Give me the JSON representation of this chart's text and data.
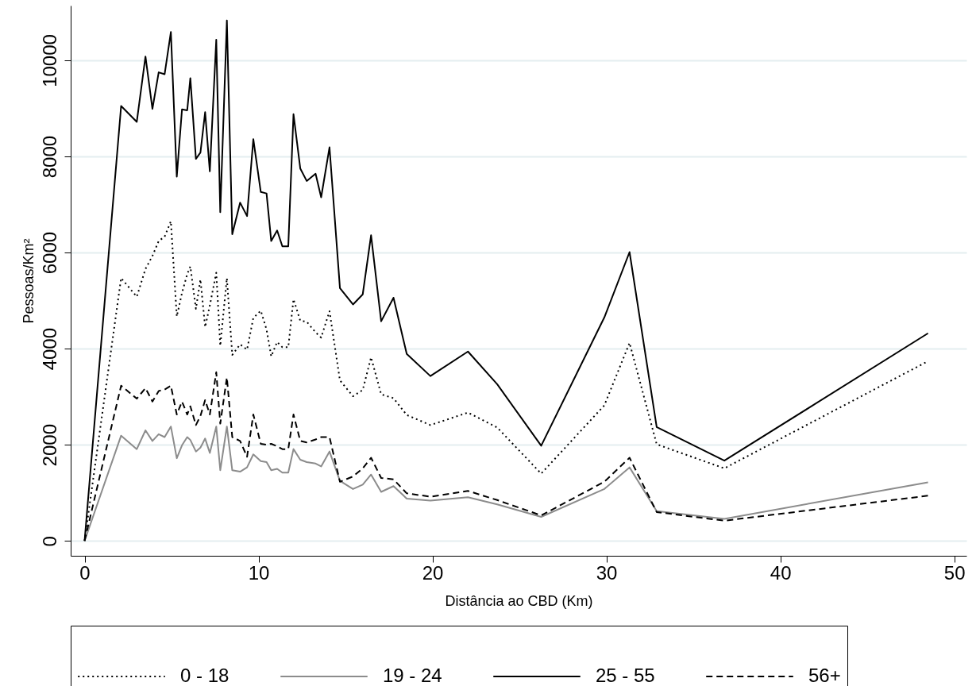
{
  "chart_data": {
    "type": "line",
    "xlabel": "Distância ao CBD (Km)",
    "ylabel": "Pessoas/Km²",
    "x": [
      0,
      2.1,
      3.0,
      3.5,
      3.9,
      4.26,
      4.6,
      4.96,
      5.3,
      5.6,
      5.9,
      6.08,
      6.4,
      6.66,
      6.93,
      7.2,
      7.57,
      7.8,
      8.18,
      8.49,
      8.94,
      9.34,
      9.7,
      10.13,
      10.46,
      10.73,
      11.07,
      11.37,
      11.71,
      12.01,
      12.4,
      12.77,
      13.28,
      13.6,
      14.08,
      14.68,
      15.43,
      15.99,
      16.47,
      17.05,
      17.76,
      18.52,
      19.88,
      22.04,
      23.72,
      26.25,
      29.88,
      31.33,
      32.89,
      36.78,
      48.49
    ],
    "series": [
      {
        "name": "0 - 18",
        "color": "#000000",
        "line_style": "dotted",
        "values": [
          0,
          5470,
          5080,
          5660,
          5930,
          6240,
          6330,
          6650,
          4670,
          5160,
          5550,
          5710,
          4830,
          5440,
          4450,
          4900,
          5580,
          4060,
          5470,
          3870,
          4090,
          3980,
          4640,
          4790,
          4400,
          3840,
          4140,
          4030,
          4030,
          5030,
          4580,
          4560,
          4340,
          4230,
          4780,
          3340,
          3010,
          3140,
          3820,
          3050,
          2970,
          2620,
          2410,
          2670,
          2360,
          1400,
          2820,
          4120,
          2010,
          1510,
          3740
        ]
      },
      {
        "name": "19 - 24",
        "color": "#8c8c8c",
        "line_style": "solid",
        "values": [
          0,
          2190,
          1910,
          2300,
          2080,
          2220,
          2160,
          2380,
          1720,
          1990,
          2160,
          2100,
          1860,
          1940,
          2130,
          1830,
          2380,
          1470,
          2380,
          1470,
          1440,
          1530,
          1800,
          1660,
          1640,
          1470,
          1500,
          1420,
          1420,
          1910,
          1690,
          1640,
          1610,
          1550,
          1860,
          1250,
          1080,
          1170,
          1380,
          1020,
          1140,
          880,
          840,
          910,
          760,
          500,
          1080,
          1530,
          620,
          460,
          1220
        ]
      },
      {
        "name": "25 - 55",
        "color": "#000000",
        "line_style": "solid",
        "values": [
          0,
          9050,
          8720,
          10080,
          8990,
          9750,
          9710,
          10590,
          7580,
          8980,
          8960,
          9630,
          7950,
          8080,
          8920,
          7690,
          10430,
          6840,
          10830,
          6380,
          7040,
          6760,
          8360,
          7260,
          7230,
          6240,
          6460,
          6130,
          6130,
          8880,
          7750,
          7490,
          7640,
          7150,
          8190,
          5260,
          4920,
          5130,
          6360,
          4570,
          5060,
          3890,
          3430,
          3940,
          3260,
          1980,
          4650,
          6010,
          2370,
          1670,
          4320
        ]
      },
      {
        "name": "56+",
        "color": "#000000",
        "line_style": "dashed",
        "values": [
          0,
          3230,
          2960,
          3180,
          2900,
          3120,
          3150,
          3230,
          2630,
          2900,
          2630,
          2800,
          2410,
          2600,
          2930,
          2630,
          3510,
          2440,
          3400,
          2160,
          2080,
          1750,
          2630,
          2020,
          2000,
          2020,
          1970,
          1910,
          1910,
          2630,
          2080,
          2050,
          2110,
          2160,
          2160,
          1230,
          1340,
          1510,
          1730,
          1310,
          1280,
          990,
          920,
          1040,
          850,
          530,
          1230,
          1730,
          600,
          420,
          940
        ]
      }
    ],
    "xlim": [
      -0.8,
      50.7
    ],
    "ylim": [
      -310,
      11140
    ],
    "xticks": [
      0,
      10,
      20,
      30,
      40,
      50
    ],
    "yticks": [
      0,
      2000,
      4000,
      6000,
      8000,
      10000
    ],
    "grid": "y",
    "legend": "bottom"
  }
}
